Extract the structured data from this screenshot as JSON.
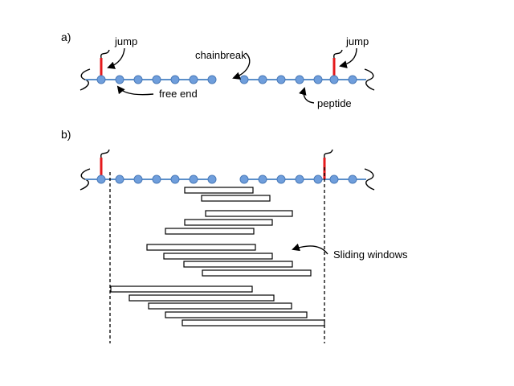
{
  "panels": {
    "a": {
      "label": "a)"
    },
    "b": {
      "label": "b)"
    }
  },
  "labels": {
    "jump_left": "jump",
    "jump_right": "jump",
    "chainbreak": "chainbreak",
    "free_end": "free end",
    "peptide": "peptide",
    "sliding_windows": "Sliding windows"
  },
  "colors": {
    "bead": "#6f9edc",
    "backbone": "#5b8fc9",
    "jump": "#e41a1c"
  }
}
